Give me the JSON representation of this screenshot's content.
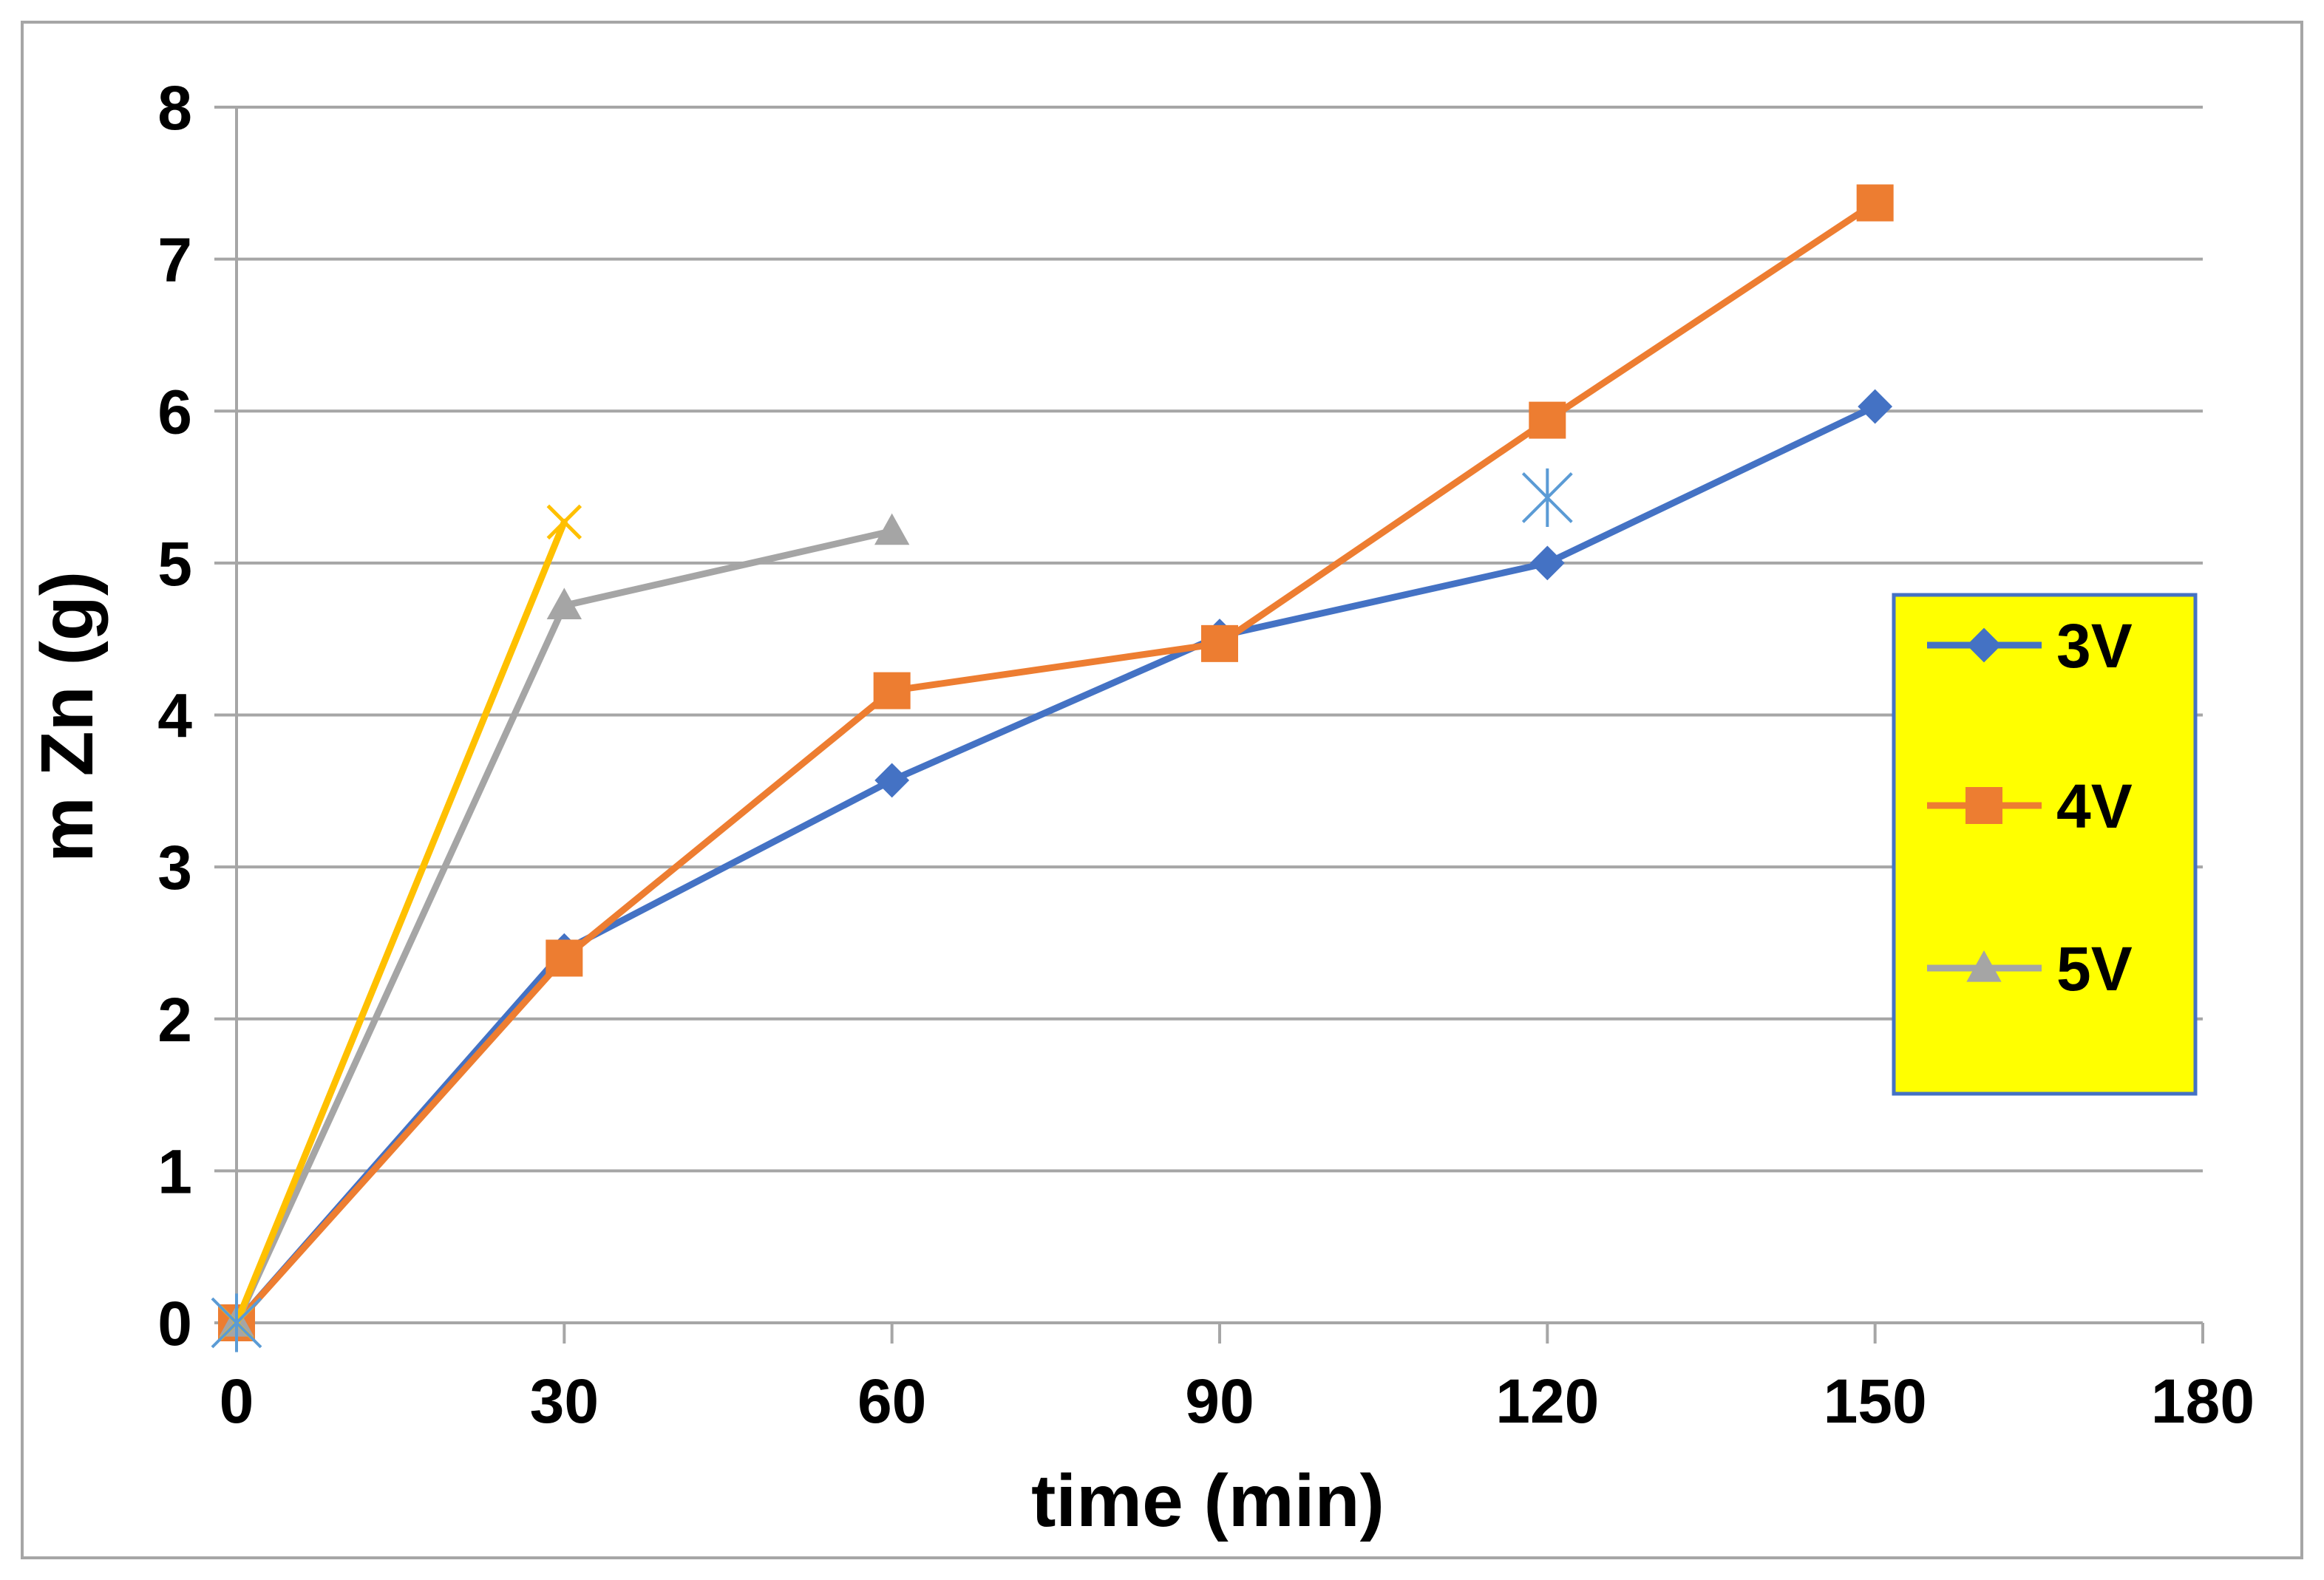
{
  "chart_data": {
    "type": "line",
    "title": "",
    "xlabel": "time (min)",
    "ylabel": "m Zn (g)",
    "xlim": [
      0,
      180
    ],
    "ylim": [
      0,
      8
    ],
    "xticks": [
      0,
      30,
      60,
      90,
      120,
      150,
      180
    ],
    "yticks": [
      0,
      1,
      2,
      3,
      4,
      5,
      6,
      7,
      8
    ],
    "xtick_labels": [
      "0",
      "30",
      "60",
      "90",
      "120",
      "150",
      "180"
    ],
    "ytick_labels": [
      "0",
      "1",
      "2",
      "3",
      "4",
      "5",
      "6",
      "7",
      "8"
    ],
    "grid": "horizontal",
    "legend_position": "right",
    "series": [
      {
        "name": "3V",
        "color": "#4472C4",
        "marker": "diamond",
        "in_legend": true,
        "x": [
          0,
          30,
          60,
          90,
          120,
          150
        ],
        "y": [
          0,
          2.45,
          3.57,
          4.52,
          5.0,
          6.03
        ]
      },
      {
        "name": "4V",
        "color": "#ED7D31",
        "marker": "square",
        "in_legend": true,
        "x": [
          0,
          30,
          60,
          90,
          120,
          150
        ],
        "y": [
          0,
          2.4,
          4.16,
          4.47,
          5.94,
          7.37
        ]
      },
      {
        "name": "5V",
        "color": "#A5A5A5",
        "marker": "triangle",
        "in_legend": true,
        "x": [
          0,
          30,
          60
        ],
        "y": [
          0,
          4.72,
          5.21
        ]
      },
      {
        "name": "",
        "color": "#FFC000",
        "marker": "x",
        "in_legend": false,
        "x": [
          0,
          30
        ],
        "y": [
          0,
          5.27
        ]
      },
      {
        "name": "",
        "color": "#5B9BD5",
        "marker": "star",
        "in_legend": false,
        "line": false,
        "x": [
          0,
          120
        ],
        "y": [
          0,
          5.43
        ]
      }
    ]
  },
  "legend": {
    "background": "#FFFF00",
    "border": "#4472C4"
  },
  "colors": {
    "gridline": "#A6A6A6",
    "frame": "#A6A6A6",
    "axis": "#A6A6A6"
  }
}
